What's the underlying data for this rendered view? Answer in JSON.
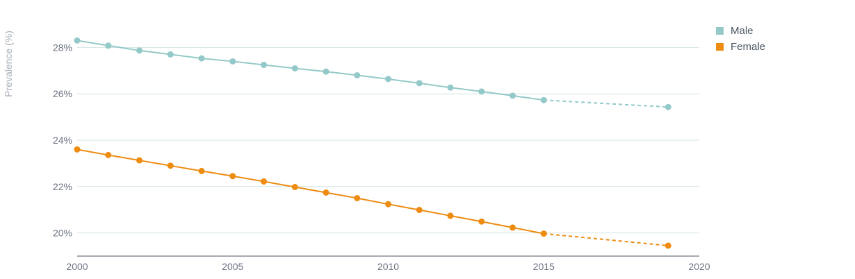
{
  "chart_data": {
    "type": "line",
    "xlabel": "",
    "ylabel": "Prevalence (%)",
    "xlim": [
      2000,
      2020
    ],
    "ylim": [
      19,
      29
    ],
    "x_ticks": [
      2000,
      2005,
      2010,
      2015,
      2020
    ],
    "y_ticks": [
      20,
      22,
      24,
      26,
      28
    ],
    "y_tick_suffix": "%",
    "grid": "horizontal",
    "legend_position": "top-right",
    "series": [
      {
        "name": "Male",
        "color": "#93c9c8",
        "x": [
          2000,
          2001,
          2002,
          2003,
          2004,
          2005,
          2006,
          2007,
          2008,
          2009,
          2010,
          2011,
          2012,
          2013,
          2014,
          2015
        ],
        "y": [
          28.3,
          28.08,
          27.87,
          27.7,
          27.53,
          27.4,
          27.25,
          27.1,
          26.96,
          26.8,
          26.64,
          26.46,
          26.27,
          26.1,
          25.92,
          25.73
        ],
        "projection": {
          "x": [
            2015,
            2019
          ],
          "y": [
            25.73,
            25.43
          ]
        }
      },
      {
        "name": "Female",
        "color": "#ee8c12",
        "x": [
          2000,
          2001,
          2002,
          2003,
          2004,
          2005,
          2006,
          2007,
          2008,
          2009,
          2010,
          2011,
          2012,
          2013,
          2014,
          2015
        ],
        "y": [
          23.6,
          23.36,
          23.13,
          22.9,
          22.67,
          22.45,
          22.22,
          21.98,
          21.74,
          21.5,
          21.24,
          20.99,
          20.74,
          20.49,
          20.23,
          19.97
        ],
        "projection": {
          "x": [
            2015,
            2019
          ],
          "y": [
            19.97,
            19.45
          ]
        }
      }
    ]
  }
}
